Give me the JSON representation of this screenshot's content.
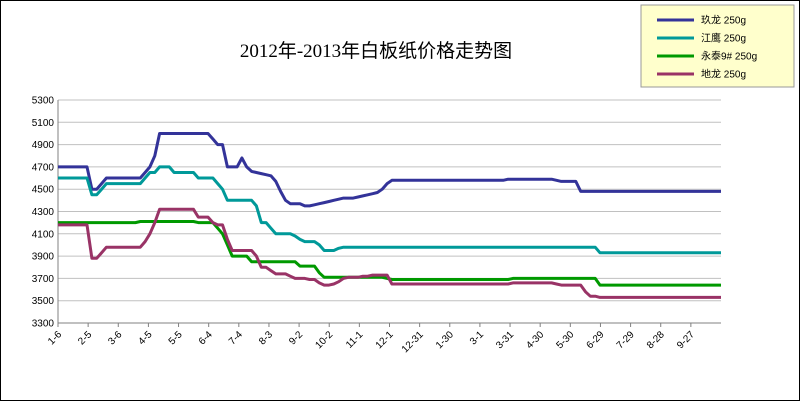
{
  "chart_data": {
    "type": "line",
    "title": "2012年-2013年白板纸价格走势图",
    "xlabel": "",
    "ylabel": "",
    "ylim": [
      3300,
      5300
    ],
    "yticks": [
      3300,
      3500,
      3700,
      3900,
      4100,
      4300,
      4500,
      4700,
      4900,
      5100,
      5300
    ],
    "grid": "horizontal",
    "legend_position": "top-right",
    "tick_labels": [
      "1-6",
      "2-5",
      "3-6",
      "4-5",
      "5-5",
      "6-4",
      "7-4",
      "8-3",
      "9-2",
      "10-2",
      "11-1",
      "12-1",
      "12-31",
      "1-30",
      "3-1",
      "3-31",
      "4-30",
      "5-30",
      "6-29",
      "7-29",
      "8-28",
      "9-27"
    ],
    "series": [
      {
        "name": "玖龙 250g",
        "color": "#333399",
        "values": [
          4700,
          4700,
          4700,
          4700,
          4700,
          4700,
          4700,
          4500,
          4500,
          4550,
          4600,
          4600,
          4600,
          4600,
          4600,
          4600,
          4600,
          4600,
          4650,
          4700,
          4800,
          5000,
          5000,
          5000,
          5000,
          5000,
          5000,
          5000,
          5000,
          5000,
          5000,
          5000,
          4950,
          4900,
          4900,
          4700,
          4700,
          4700,
          4780,
          4700,
          4660,
          4650,
          4640,
          4630,
          4620,
          4570,
          4480,
          4400,
          4370,
          4370,
          4370,
          4350,
          4350,
          4360,
          4370,
          4380,
          4390,
          4400,
          4410,
          4420,
          4420,
          4420,
          4430,
          4440,
          4450,
          4460,
          4470,
          4500,
          4550,
          4580,
          4580,
          4580,
          4580,
          4580,
          4580,
          4580,
          4580,
          4580,
          4580,
          4580,
          4580,
          4580,
          4580,
          4580,
          4580,
          4580,
          4580,
          4580,
          4580,
          4580,
          4580,
          4580,
          4580,
          4590,
          4590,
          4590,
          4590,
          4590,
          4590,
          4590,
          4590,
          4590,
          4590,
          4580,
          4570,
          4570,
          4570,
          4570,
          4480,
          4480,
          4480,
          4480,
          4480,
          4480,
          4480,
          4480,
          4480,
          4480,
          4480,
          4480,
          4480,
          4480,
          4480,
          4480,
          4480,
          4480,
          4480,
          4480,
          4480,
          4480,
          4480,
          4480,
          4480,
          4480,
          4480,
          4480,
          4480,
          4480
        ]
      },
      {
        "name": "江鹰 250g",
        "color": "#009999",
        "values": [
          4600,
          4600,
          4600,
          4600,
          4600,
          4600,
          4600,
          4450,
          4450,
          4500,
          4550,
          4550,
          4550,
          4550,
          4550,
          4550,
          4550,
          4550,
          4600,
          4650,
          4650,
          4700,
          4700,
          4700,
          4650,
          4650,
          4650,
          4650,
          4650,
          4600,
          4600,
          4600,
          4600,
          4550,
          4500,
          4400,
          4400,
          4400,
          4400,
          4400,
          4400,
          4350,
          4200,
          4200,
          4150,
          4100,
          4100,
          4100,
          4100,
          4080,
          4050,
          4030,
          4030,
          4030,
          4000,
          3950,
          3950,
          3950,
          3970,
          3980,
          3980,
          3980,
          3980,
          3980,
          3980,
          3980,
          3980,
          3980,
          3980,
          3980,
          3980,
          3980,
          3980,
          3980,
          3980,
          3980,
          3980,
          3980,
          3980,
          3980,
          3980,
          3980,
          3980,
          3980,
          3980,
          3980,
          3980,
          3980,
          3980,
          3980,
          3980,
          3980,
          3980,
          3980,
          3980,
          3980,
          3980,
          3980,
          3980,
          3980,
          3980,
          3980,
          3980,
          3980,
          3980,
          3980,
          3980,
          3980,
          3980,
          3980,
          3980,
          3980,
          3930,
          3930,
          3930,
          3930,
          3930,
          3930,
          3930,
          3930,
          3930,
          3930,
          3930,
          3930,
          3930,
          3930,
          3930,
          3930,
          3930,
          3930,
          3930,
          3930,
          3930,
          3930,
          3930,
          3930,
          3930,
          3930
        ]
      },
      {
        "name": "永泰9# 250g",
        "color": "#009900",
        "values": [
          4200,
          4200,
          4200,
          4200,
          4200,
          4200,
          4200,
          4200,
          4200,
          4200,
          4200,
          4200,
          4200,
          4200,
          4200,
          4200,
          4200,
          4210,
          4210,
          4210,
          4210,
          4210,
          4210,
          4210,
          4210,
          4210,
          4210,
          4210,
          4210,
          4200,
          4200,
          4200,
          4200,
          4150,
          4100,
          4000,
          3900,
          3900,
          3900,
          3900,
          3850,
          3850,
          3850,
          3850,
          3850,
          3850,
          3850,
          3850,
          3850,
          3850,
          3810,
          3810,
          3810,
          3810,
          3750,
          3710,
          3710,
          3710,
          3710,
          3710,
          3710,
          3710,
          3710,
          3710,
          3710,
          3710,
          3710,
          3710,
          3700,
          3690,
          3690,
          3690,
          3690,
          3690,
          3690,
          3690,
          3690,
          3690,
          3690,
          3690,
          3690,
          3690,
          3690,
          3690,
          3690,
          3690,
          3690,
          3690,
          3690,
          3690,
          3690,
          3690,
          3690,
          3690,
          3700,
          3700,
          3700,
          3700,
          3700,
          3700,
          3700,
          3700,
          3700,
          3700,
          3700,
          3700,
          3700,
          3700,
          3700,
          3700,
          3700,
          3700,
          3640,
          3640,
          3640,
          3640,
          3640,
          3640,
          3640,
          3640,
          3640,
          3640,
          3640,
          3640,
          3640,
          3640,
          3640,
          3640,
          3640,
          3640,
          3640,
          3640,
          3640,
          3640,
          3640,
          3640,
          3640,
          3640
        ]
      },
      {
        "name": "地龙 250g",
        "color": "#993366",
        "values": [
          4180,
          4180,
          4180,
          4180,
          4180,
          4180,
          4180,
          3880,
          3880,
          3930,
          3980,
          3980,
          3980,
          3980,
          3980,
          3980,
          3980,
          3980,
          4030,
          4100,
          4200,
          4320,
          4320,
          4320,
          4320,
          4320,
          4320,
          4320,
          4320,
          4250,
          4250,
          4250,
          4200,
          4180,
          4180,
          4050,
          3950,
          3950,
          3950,
          3950,
          3950,
          3900,
          3800,
          3800,
          3770,
          3740,
          3740,
          3740,
          3720,
          3700,
          3700,
          3700,
          3690,
          3690,
          3660,
          3640,
          3640,
          3650,
          3670,
          3700,
          3710,
          3710,
          3710,
          3720,
          3720,
          3730,
          3730,
          3730,
          3730,
          3650,
          3650,
          3650,
          3650,
          3650,
          3650,
          3650,
          3650,
          3650,
          3650,
          3650,
          3650,
          3650,
          3650,
          3650,
          3650,
          3650,
          3650,
          3650,
          3650,
          3650,
          3650,
          3650,
          3650,
          3650,
          3660,
          3660,
          3660,
          3660,
          3660,
          3660,
          3660,
          3660,
          3660,
          3650,
          3640,
          3640,
          3640,
          3640,
          3640,
          3580,
          3540,
          3540,
          3530,
          3530,
          3530,
          3530,
          3530,
          3530,
          3530,
          3530,
          3530,
          3530,
          3530,
          3530,
          3530,
          3530,
          3530,
          3530,
          3530,
          3530,
          3530,
          3530,
          3530,
          3530,
          3530,
          3530,
          3530,
          3530
        ]
      }
    ]
  }
}
